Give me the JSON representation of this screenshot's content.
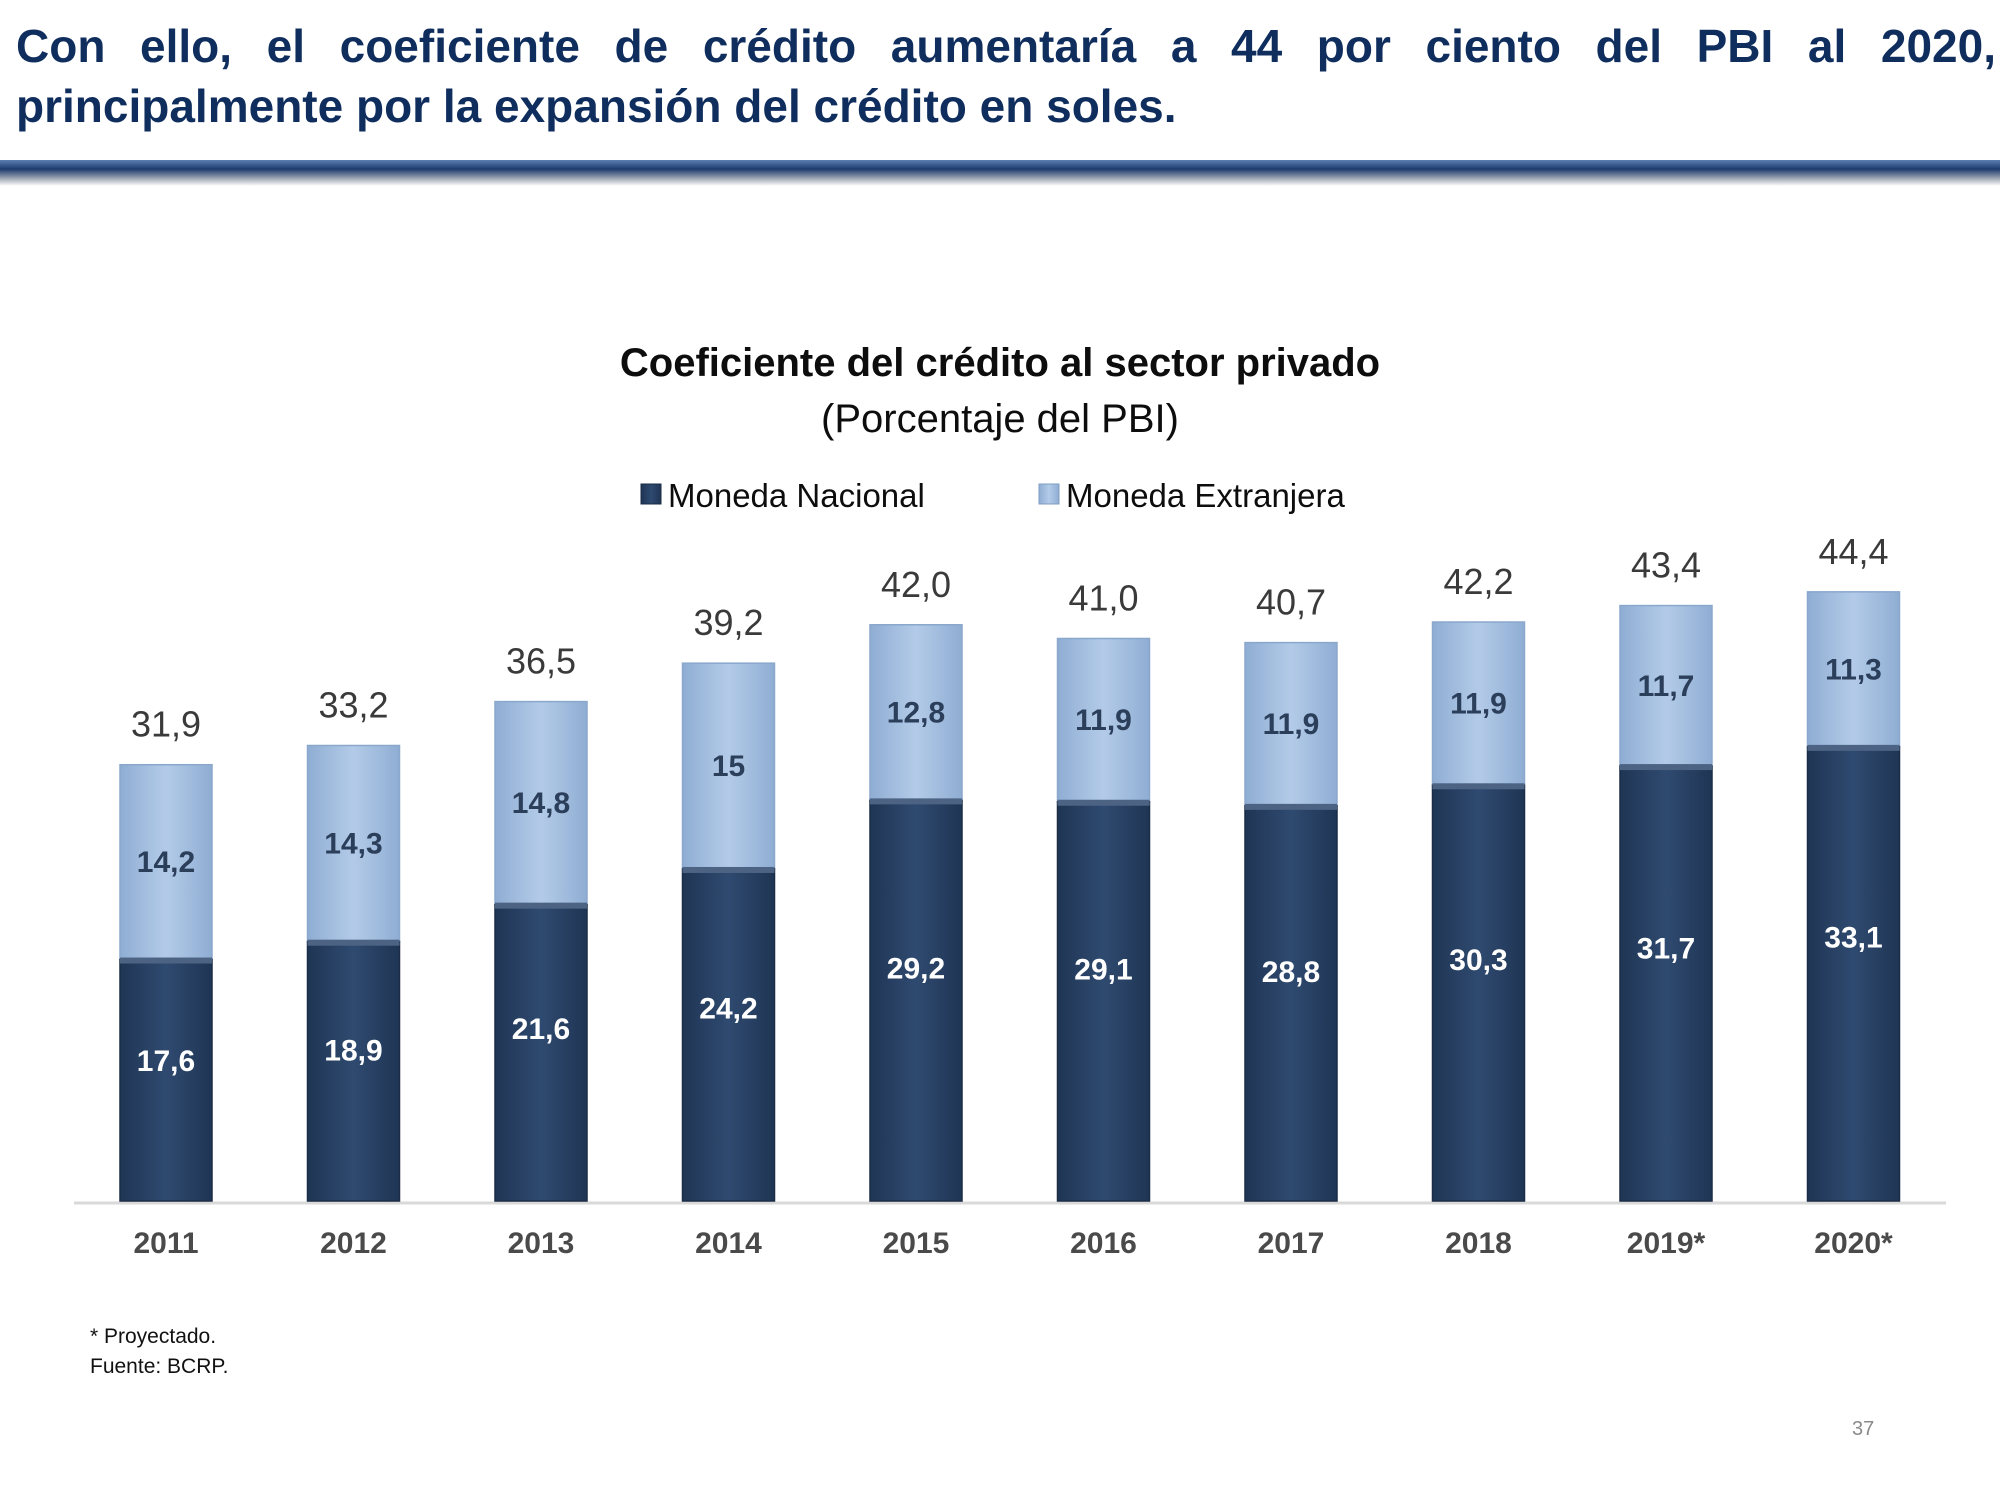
{
  "slide": {
    "headline": "Con ello, el coeficiente de crédito aumentaría a 44 por ciento del PBI al 2020, principalmente por la expansión del crédito en soles.",
    "footnote_projected": "* Proyectado.",
    "footnote_source": "Fuente: BCRP.",
    "page_number": "37"
  },
  "chart_data": {
    "type": "bar",
    "stacked": true,
    "title": "Coeficiente del crédito al sector privado",
    "subtitle": "(Porcentaje del PBI)",
    "categories": [
      "2011",
      "2012",
      "2013",
      "2014",
      "2015",
      "2016",
      "2017",
      "2018",
      "2019*",
      "2020*"
    ],
    "series": [
      {
        "name": "Moneda Nacional",
        "values": [
          17.6,
          18.9,
          21.6,
          24.2,
          29.2,
          29.1,
          28.8,
          30.3,
          31.7,
          33.1
        ],
        "labels": [
          "17,6",
          "18,9",
          "21,6",
          "24,2",
          "29,2",
          "29,1",
          "28,8",
          "30,3",
          "31,7",
          "33,1"
        ],
        "color": "#2b4468"
      },
      {
        "name": "Moneda Extranjera",
        "values": [
          14.2,
          14.3,
          14.8,
          15,
          12.8,
          11.9,
          11.9,
          11.9,
          11.7,
          11.3
        ],
        "labels": [
          "14,2",
          "14,3",
          "14,8",
          "15",
          "12,8",
          "11,9",
          "11,9",
          "11,9",
          "11,7",
          "11,3"
        ],
        "color": "#a9c3e2"
      }
    ],
    "totals": [
      31.9,
      33.2,
      36.5,
      39.2,
      42.0,
      41.0,
      40.7,
      42.2,
      43.4,
      44.4
    ],
    "total_labels": [
      "31,9",
      "33,2",
      "36,5",
      "39,2",
      "42,0",
      "41,0",
      "40,7",
      "42,2",
      "43,4",
      "44,4"
    ],
    "ylim": [
      0,
      48
    ],
    "grid": false,
    "legend_position": "top-center"
  }
}
